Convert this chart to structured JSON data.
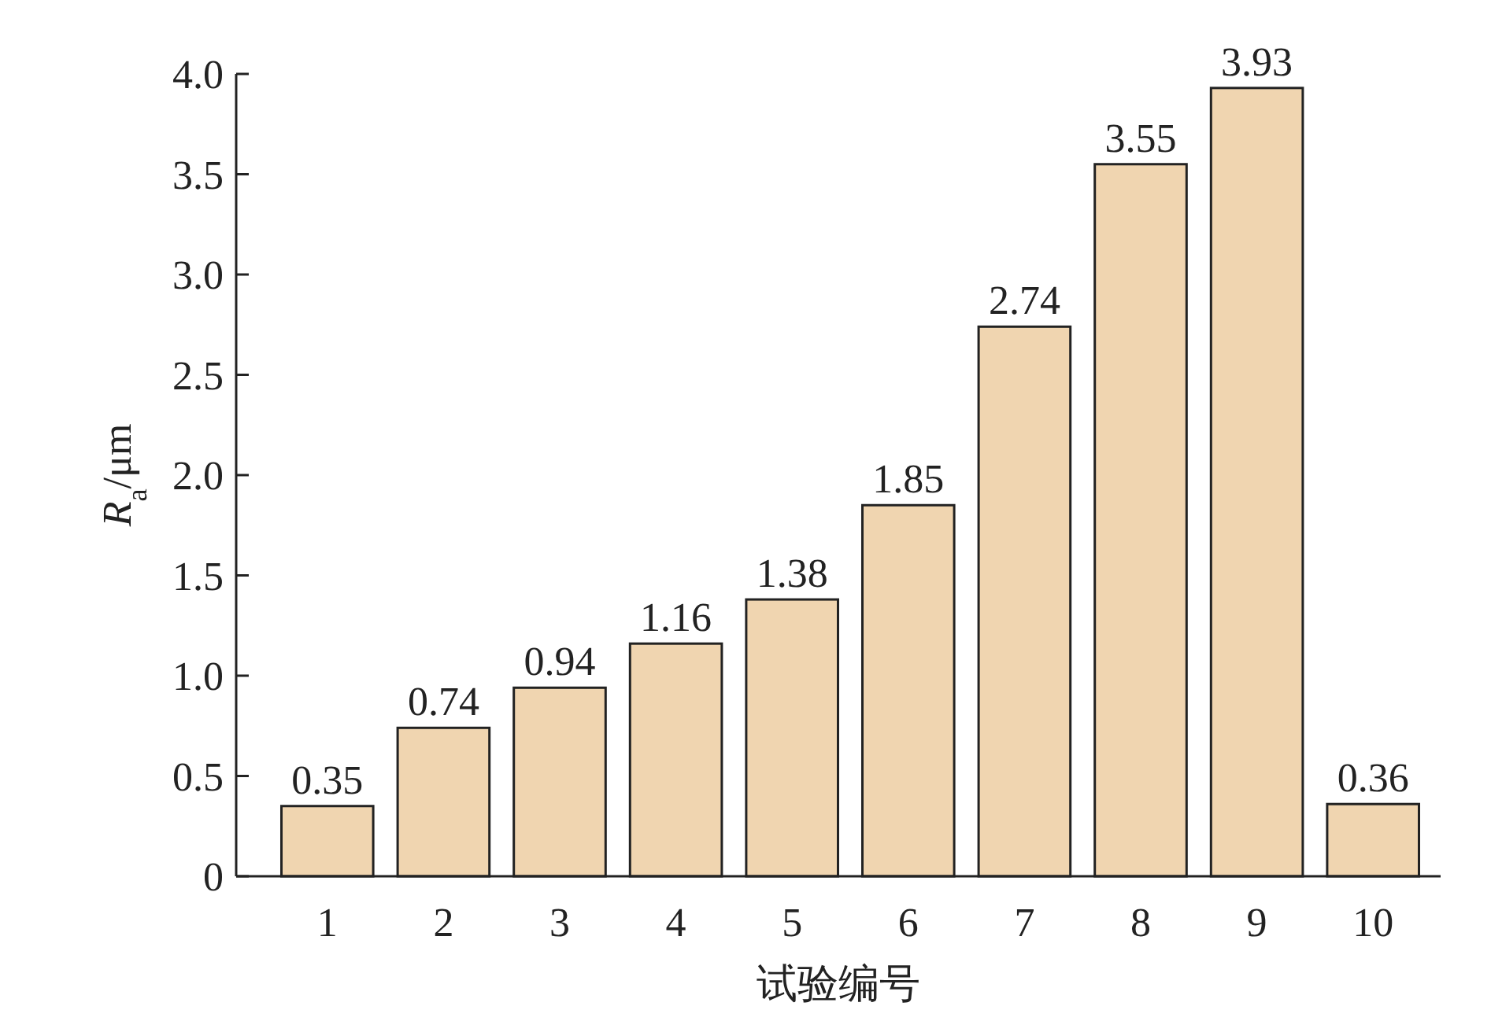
{
  "chart_data": {
    "type": "bar",
    "xlabel": "试验编号",
    "ylabel": "*R*$_{a}$/μm",
    "categories": [
      "1",
      "2",
      "3",
      "4",
      "5",
      "6",
      "7",
      "8",
      "9",
      "10"
    ],
    "values": [
      0.35,
      0.74,
      0.94,
      1.16,
      1.38,
      1.85,
      2.74,
      3.55,
      3.93,
      0.36
    ],
    "color": "#f0d5b0",
    "data_labels": true,
    "ylim": [
      0,
      4
    ],
    "yticks": [
      0,
      0.5,
      {
        "value": 1,
        "label": "1.0"
      },
      1.5,
      {
        "value": 2,
        "label": "2.0"
      },
      2.5,
      {
        "value": 3,
        "label": "3.0"
      },
      3.5,
      {
        "value": 4,
        "label": "4.0"
      }
    ]
  }
}
